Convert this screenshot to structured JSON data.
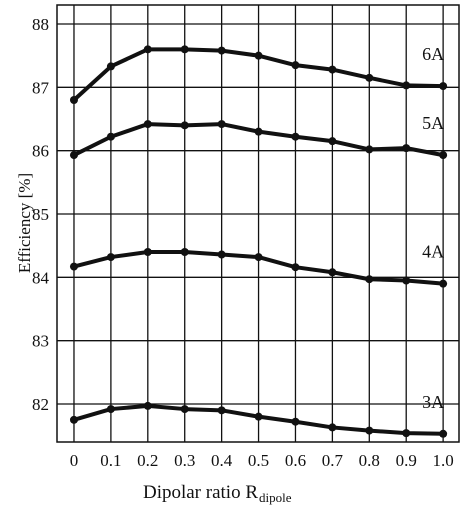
{
  "chart_data": {
    "type": "line",
    "x_label": "Dipolar ratio R",
    "x_label_sub": "dipole",
    "y_label": "Efficiency [%]",
    "x": [
      0,
      0.1,
      0.2,
      0.3,
      0.4,
      0.5,
      0.6,
      0.7,
      0.8,
      0.9,
      1
    ],
    "xlim": [
      -0.046,
      1.043
    ],
    "xticks": [
      0,
      0.1,
      0.2,
      0.3,
      0.4,
      0.5,
      0.6,
      0.7,
      0.8,
      0.9,
      {
        "value": 1,
        "label": "1.0"
      }
    ],
    "ylim": [
      81.4,
      88.3
    ],
    "yticks": [
      82,
      83,
      84,
      85,
      86,
      87,
      88
    ],
    "grid": true,
    "series": [
      {
        "name": "6A",
        "color": "#111111",
        "values": [
          86.8,
          87.33,
          87.6,
          87.6,
          87.58,
          87.5,
          87.35,
          87.28,
          87.15,
          87.03,
          87.02
        ]
      },
      {
        "name": "5A",
        "color": "#111111",
        "values": [
          85.93,
          86.22,
          86.42,
          86.4,
          86.42,
          86.3,
          86.22,
          86.15,
          86.02,
          86.04,
          85.93
        ]
      },
      {
        "name": "4A",
        "color": "#111111",
        "values": [
          84.17,
          84.32,
          84.4,
          84.4,
          84.36,
          84.32,
          84.16,
          84.08,
          83.97,
          83.95,
          83.9
        ]
      },
      {
        "name": "3A",
        "color": "#111111",
        "values": [
          81.75,
          81.92,
          81.97,
          81.92,
          81.9,
          81.8,
          81.72,
          81.63,
          81.58,
          81.54,
          81.53
        ]
      }
    ]
  }
}
